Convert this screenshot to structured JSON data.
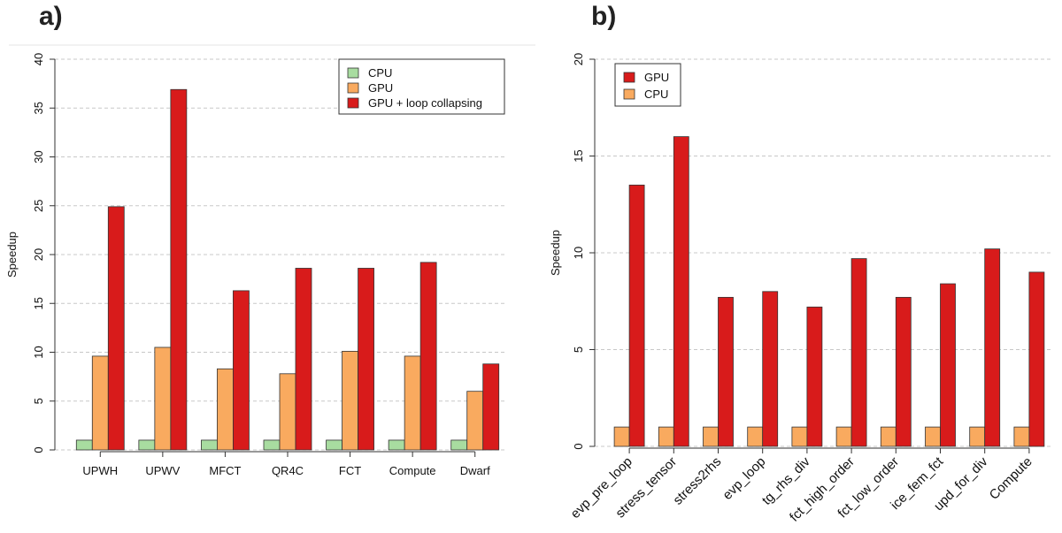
{
  "panels": {
    "a_label": "a)",
    "b_label": "b)"
  },
  "colors": {
    "cpu": "#a8dca0",
    "gpu": "#f9aa5f",
    "gpu_loop": "#d81b1b",
    "grid": "#c8c8c8"
  },
  "chart_data": [
    {
      "type": "bar",
      "panel": "a)",
      "ylabel": "Speedup",
      "xlabel": "",
      "ylim": [
        0,
        40
      ],
      "yticks": [
        0,
        5,
        10,
        15,
        20,
        25,
        30,
        35,
        40
      ],
      "grid": "horizontal dashed",
      "legend_position": "top-right",
      "categories": [
        "UPWH",
        "UPWV",
        "MFCT",
        "QR4C",
        "FCT",
        "Compute",
        "Dwarf"
      ],
      "series": [
        {
          "name": "CPU",
          "color": "#a8dca0",
          "values": [
            1,
            1,
            1,
            1,
            1,
            1,
            1
          ]
        },
        {
          "name": "GPU",
          "color": "#f9aa5f",
          "values": [
            9.6,
            10.5,
            8.3,
            7.8,
            10.1,
            9.6,
            6.0
          ]
        },
        {
          "name": "GPU + loop collapsing",
          "color": "#d81b1b",
          "values": [
            24.9,
            36.9,
            16.3,
            18.6,
            18.6,
            19.2,
            8.8
          ]
        }
      ]
    },
    {
      "type": "bar",
      "panel": "b)",
      "ylabel": "Speedup",
      "xlabel": "",
      "ylim": [
        0,
        20
      ],
      "yticks": [
        0,
        5,
        10,
        15,
        20
      ],
      "grid": "horizontal dashed",
      "legend_position": "top-left",
      "categories": [
        "evp_pre_loop",
        "stress_tensor",
        "stress2rhs",
        "evp_loop",
        "tg_rhs_div",
        "fct_high_order",
        "fct_low_order",
        "ice_fem_fct",
        "upd_for_div",
        "Compute"
      ],
      "series": [
        {
          "name": "CPU",
          "color": "#f9aa5f",
          "values": [
            1,
            1,
            1,
            1,
            1,
            1,
            1,
            1,
            1,
            1
          ]
        },
        {
          "name": "GPU",
          "color": "#d81b1b",
          "values": [
            13.5,
            16.0,
            7.7,
            8.0,
            7.2,
            9.7,
            7.7,
            8.4,
            10.2,
            9.0
          ]
        }
      ],
      "legend_order": [
        "GPU",
        "CPU"
      ]
    }
  ]
}
